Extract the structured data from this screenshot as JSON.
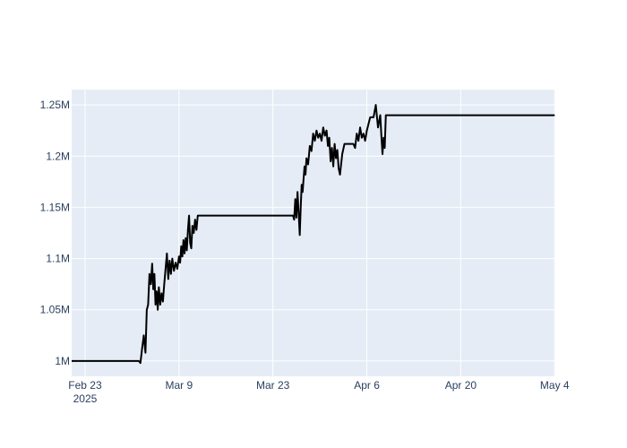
{
  "chart_data": {
    "type": "line",
    "title": "",
    "xlabel": "",
    "ylabel": "",
    "grid": true,
    "legend": "none",
    "colors": {
      "plot_bg": "#e5ecf6",
      "grid": "#ffffff",
      "line": "#000000",
      "text": "#2a3f5f"
    },
    "x_ticks": [
      {
        "date": "2025-02-23",
        "label": "Feb 23",
        "sublabel": "2025"
      },
      {
        "date": "2025-03-09",
        "label": "Mar 9",
        "sublabel": ""
      },
      {
        "date": "2025-03-23",
        "label": "Mar 23",
        "sublabel": ""
      },
      {
        "date": "2025-04-06",
        "label": "Apr 6",
        "sublabel": ""
      },
      {
        "date": "2025-04-20",
        "label": "Apr 20",
        "sublabel": ""
      },
      {
        "date": "2025-05-04",
        "label": "May 4",
        "sublabel": ""
      }
    ],
    "y_ticks": [
      {
        "value": 1000000,
        "label": "1M"
      },
      {
        "value": 1050000,
        "label": "1.05M"
      },
      {
        "value": 1100000,
        "label": "1.1M"
      },
      {
        "value": 1150000,
        "label": "1.15M"
      },
      {
        "value": 1200000,
        "label": "1.2M"
      },
      {
        "value": 1250000,
        "label": "1.25M"
      }
    ],
    "xlim": [
      "2025-02-21",
      "2025-05-04"
    ],
    "ylim": [
      985000,
      1265000
    ],
    "series": [
      {
        "points": [
          [
            "2025-02-21",
            1000000
          ],
          [
            "2025-03-03",
            1000000
          ],
          [
            "2025-03-03",
            998000
          ],
          [
            "2025-03-03",
            1012000
          ],
          [
            "2025-03-03",
            1025000
          ],
          [
            "2025-03-04",
            1008000
          ],
          [
            "2025-03-04",
            1050000
          ],
          [
            "2025-03-04",
            1055000
          ],
          [
            "2025-03-04",
            1085000
          ],
          [
            "2025-03-04",
            1075000
          ],
          [
            "2025-03-05",
            1095000
          ],
          [
            "2025-03-05",
            1070000
          ],
          [
            "2025-03-05",
            1085000
          ],
          [
            "2025-03-05",
            1055000
          ],
          [
            "2025-03-05",
            1068000
          ],
          [
            "2025-03-05",
            1050000
          ],
          [
            "2025-03-06",
            1072000
          ],
          [
            "2025-03-06",
            1055000
          ],
          [
            "2025-03-06",
            1066000
          ],
          [
            "2025-03-06",
            1058000
          ],
          [
            "2025-03-06",
            1075000
          ],
          [
            "2025-03-07",
            1090000
          ],
          [
            "2025-03-07",
            1105000
          ],
          [
            "2025-03-07",
            1080000
          ],
          [
            "2025-03-07",
            1098000
          ],
          [
            "2025-03-07",
            1085000
          ],
          [
            "2025-03-08",
            1100000
          ],
          [
            "2025-03-08",
            1088000
          ],
          [
            "2025-03-08",
            1096000
          ],
          [
            "2025-03-08",
            1090000
          ],
          [
            "2025-03-09",
            1102000
          ],
          [
            "2025-03-09",
            1096000
          ],
          [
            "2025-03-09",
            1112000
          ],
          [
            "2025-03-09",
            1102000
          ],
          [
            "2025-03-09",
            1118000
          ],
          [
            "2025-03-09",
            1105000
          ],
          [
            "2025-03-10",
            1120000
          ],
          [
            "2025-03-10",
            1108000
          ],
          [
            "2025-03-10",
            1128000
          ],
          [
            "2025-03-10",
            1142000
          ],
          [
            "2025-03-10",
            1115000
          ],
          [
            "2025-03-10",
            1110000
          ],
          [
            "2025-03-11",
            1132000
          ],
          [
            "2025-03-11",
            1125000
          ],
          [
            "2025-03-11",
            1138000
          ],
          [
            "2025-03-11",
            1128000
          ],
          [
            "2025-03-11",
            1142000
          ],
          [
            "2025-03-26",
            1142000
          ],
          [
            "2025-03-26",
            1138000
          ],
          [
            "2025-03-26",
            1158000
          ],
          [
            "2025-03-26",
            1140000
          ],
          [
            "2025-03-26",
            1165000
          ],
          [
            "2025-03-26",
            1145000
          ],
          [
            "2025-03-27",
            1123000
          ],
          [
            "2025-03-27",
            1150000
          ],
          [
            "2025-03-27",
            1172000
          ],
          [
            "2025-03-27",
            1165000
          ],
          [
            "2025-03-27",
            1178000
          ],
          [
            "2025-03-27",
            1190000
          ],
          [
            "2025-03-27",
            1182000
          ],
          [
            "2025-03-28",
            1198000
          ],
          [
            "2025-03-28",
            1192000
          ],
          [
            "2025-03-28",
            1210000
          ],
          [
            "2025-03-28",
            1205000
          ],
          [
            "2025-03-29",
            1222000
          ],
          [
            "2025-03-29",
            1215000
          ],
          [
            "2025-03-29",
            1225000
          ],
          [
            "2025-03-29",
            1218000
          ],
          [
            "2025-03-30",
            1222000
          ],
          [
            "2025-03-30",
            1215000
          ],
          [
            "2025-03-30",
            1228000
          ],
          [
            "2025-03-30",
            1220000
          ],
          [
            "2025-03-31",
            1225000
          ],
          [
            "2025-03-31",
            1210000
          ],
          [
            "2025-03-31",
            1218000
          ],
          [
            "2025-03-31",
            1195000
          ],
          [
            "2025-03-31",
            1208000
          ],
          [
            "2025-04-01",
            1190000
          ],
          [
            "2025-04-01",
            1212000
          ],
          [
            "2025-04-01",
            1198000
          ],
          [
            "2025-04-01",
            1206000
          ],
          [
            "2025-04-01",
            1188000
          ],
          [
            "2025-04-02",
            1182000
          ],
          [
            "2025-04-02",
            1202000
          ],
          [
            "2025-04-02",
            1212000
          ],
          [
            "2025-04-04",
            1212000
          ],
          [
            "2025-04-04",
            1208000
          ],
          [
            "2025-04-04",
            1222000
          ],
          [
            "2025-04-04",
            1215000
          ],
          [
            "2025-04-05",
            1228000
          ],
          [
            "2025-04-05",
            1218000
          ],
          [
            "2025-04-05",
            1222000
          ],
          [
            "2025-04-05",
            1215000
          ],
          [
            "2025-04-06",
            1225000
          ],
          [
            "2025-04-06",
            1238000
          ],
          [
            "2025-04-07",
            1238000
          ],
          [
            "2025-04-07",
            1250000
          ],
          [
            "2025-04-07",
            1228000
          ],
          [
            "2025-04-08",
            1240000
          ],
          [
            "2025-04-08",
            1220000
          ],
          [
            "2025-04-08",
            1202000
          ],
          [
            "2025-04-08",
            1218000
          ],
          [
            "2025-04-08",
            1208000
          ],
          [
            "2025-04-08",
            1240000
          ],
          [
            "2025-05-04",
            1240000
          ]
        ]
      }
    ]
  }
}
